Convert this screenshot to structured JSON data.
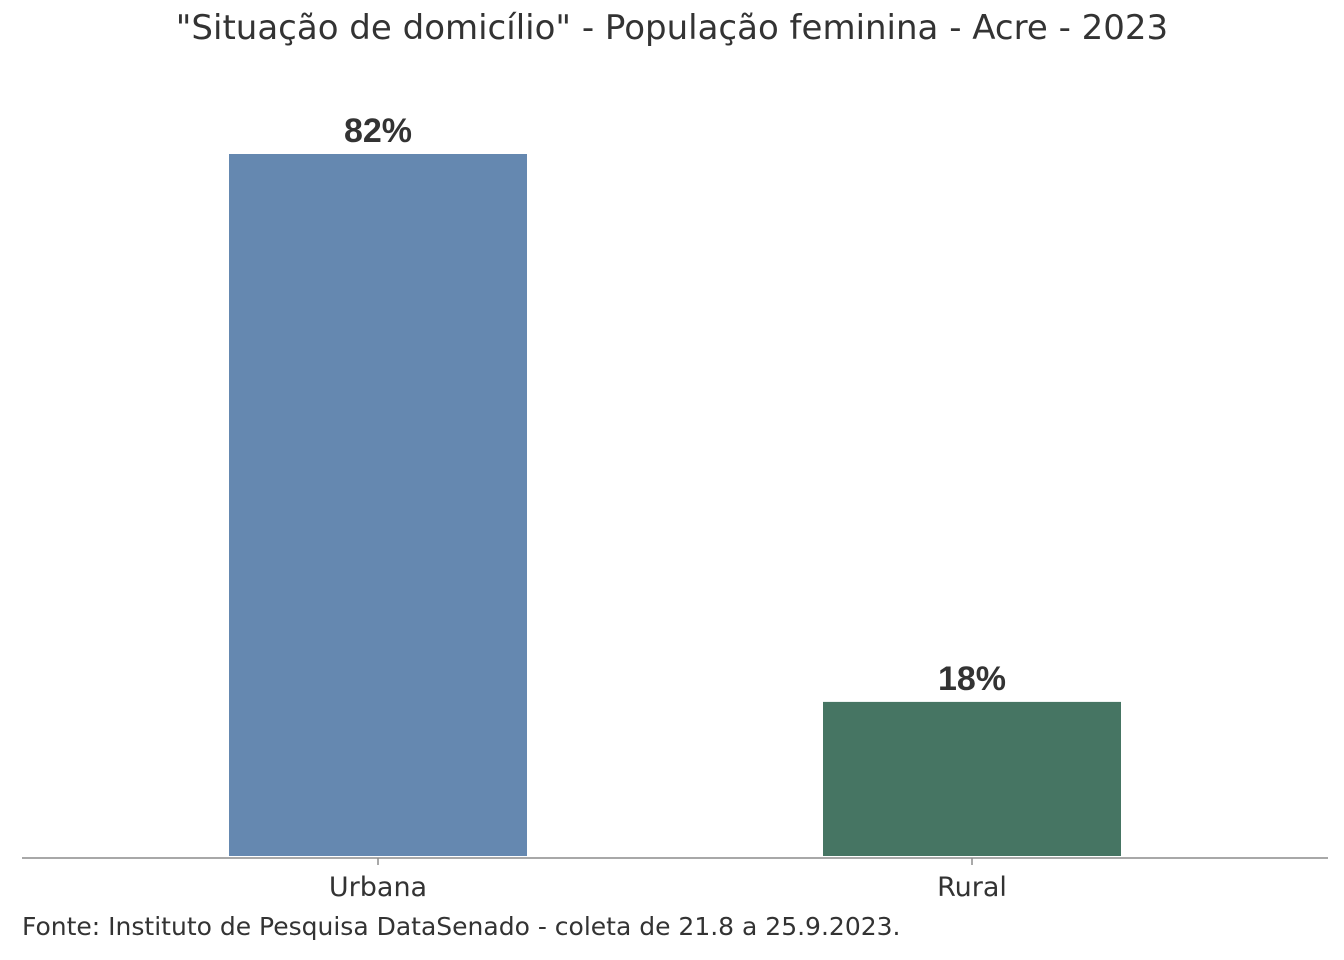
{
  "chart_data": {
    "type": "bar",
    "title": "\"Situação de domicílio\" - População feminina - Acre - 2023",
    "categories": [
      "Urbana",
      "Rural"
    ],
    "values": [
      82,
      18
    ],
    "value_labels": [
      "82%",
      "18%"
    ],
    "colors": [
      "#6588b0",
      "#467563"
    ],
    "ylim": [
      0,
      82
    ],
    "grid": false,
    "legend": "none",
    "xlabel": "",
    "ylabel": ""
  },
  "source": "Fonte: Instituto de Pesquisa DataSenado - coleta de 21.8 a 25.9.2023."
}
